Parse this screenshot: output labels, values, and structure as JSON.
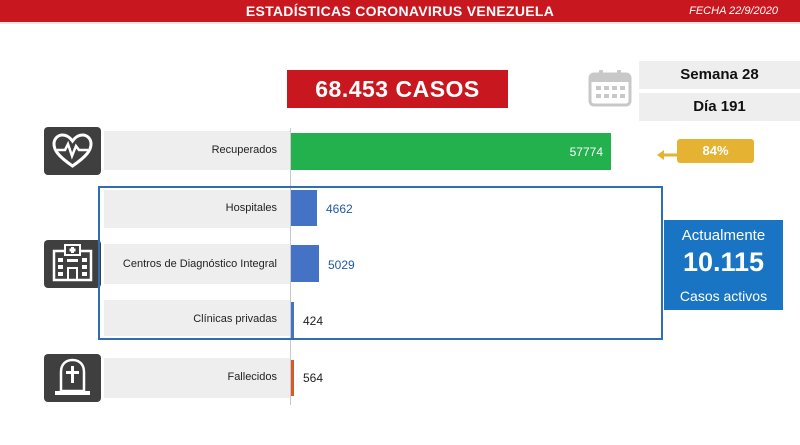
{
  "header": {
    "title": "ESTADÍSTICAS CORONAVIRUS VENEZUELA",
    "date": "FECHA 22/9/2020"
  },
  "total": {
    "label": "68.453 CASOS"
  },
  "calendar": {
    "week": "Semana 28",
    "day": "Día 191"
  },
  "percent_recovered": "84%",
  "active": {
    "line1": "Actualmente",
    "value": "10.115",
    "line2": "Casos activos"
  },
  "colors": {
    "header": "#c8171e",
    "recovered": "#23b14d",
    "facility": "#4472c4",
    "deceased": "#d55c2a",
    "percent": "#e5b232",
    "active": "#1a74c4"
  },
  "icons": {
    "recovered": "heart-pulse-icon",
    "facilities": "hospital-building-icon",
    "deceased": "grave-cross-icon",
    "calendar": "calendar-icon"
  },
  "chart_data": {
    "type": "bar",
    "orientation": "horizontal",
    "categories": [
      "Recuperados",
      "Hospitales",
      "Centros de Diagnóstico Integral",
      "Clínicas privadas",
      "Fallecidos"
    ],
    "values": [
      57774,
      4662,
      5029,
      424,
      564
    ],
    "value_labels": [
      "57774",
      "4662",
      "5029",
      "424",
      "564"
    ],
    "grid": false
  }
}
